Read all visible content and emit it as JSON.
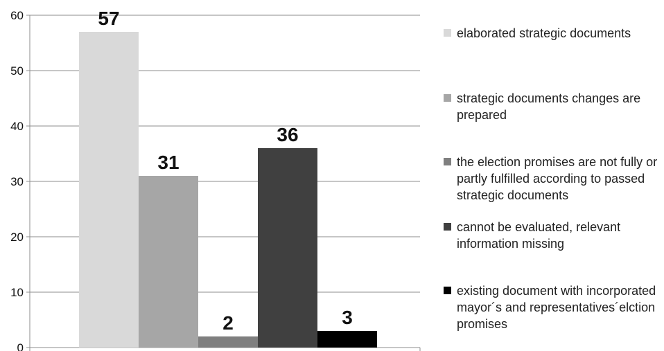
{
  "chart_data": {
    "type": "bar",
    "ylim": [
      0,
      60
    ],
    "yticks": [
      0,
      10,
      20,
      30,
      40,
      50,
      60
    ],
    "grid": true,
    "legend_position": "right",
    "series": [
      {
        "name": "elaborated strategic documents",
        "value": 57,
        "color": "#d9d9d9"
      },
      {
        "name": "strategic documents changes are prepared",
        "value": 31,
        "color": "#a6a6a6"
      },
      {
        "name": "the election promises are not fully or partly fulfilled according to passed strategic documents",
        "value": 2,
        "color": "#7f7f7f"
      },
      {
        "name": "cannot be evaluated, relevant information missing",
        "value": 36,
        "color": "#404040"
      },
      {
        "name": "existing document with incorporated mayor´s and representatives´elction promises",
        "value": 3,
        "color": "#000000"
      }
    ]
  }
}
